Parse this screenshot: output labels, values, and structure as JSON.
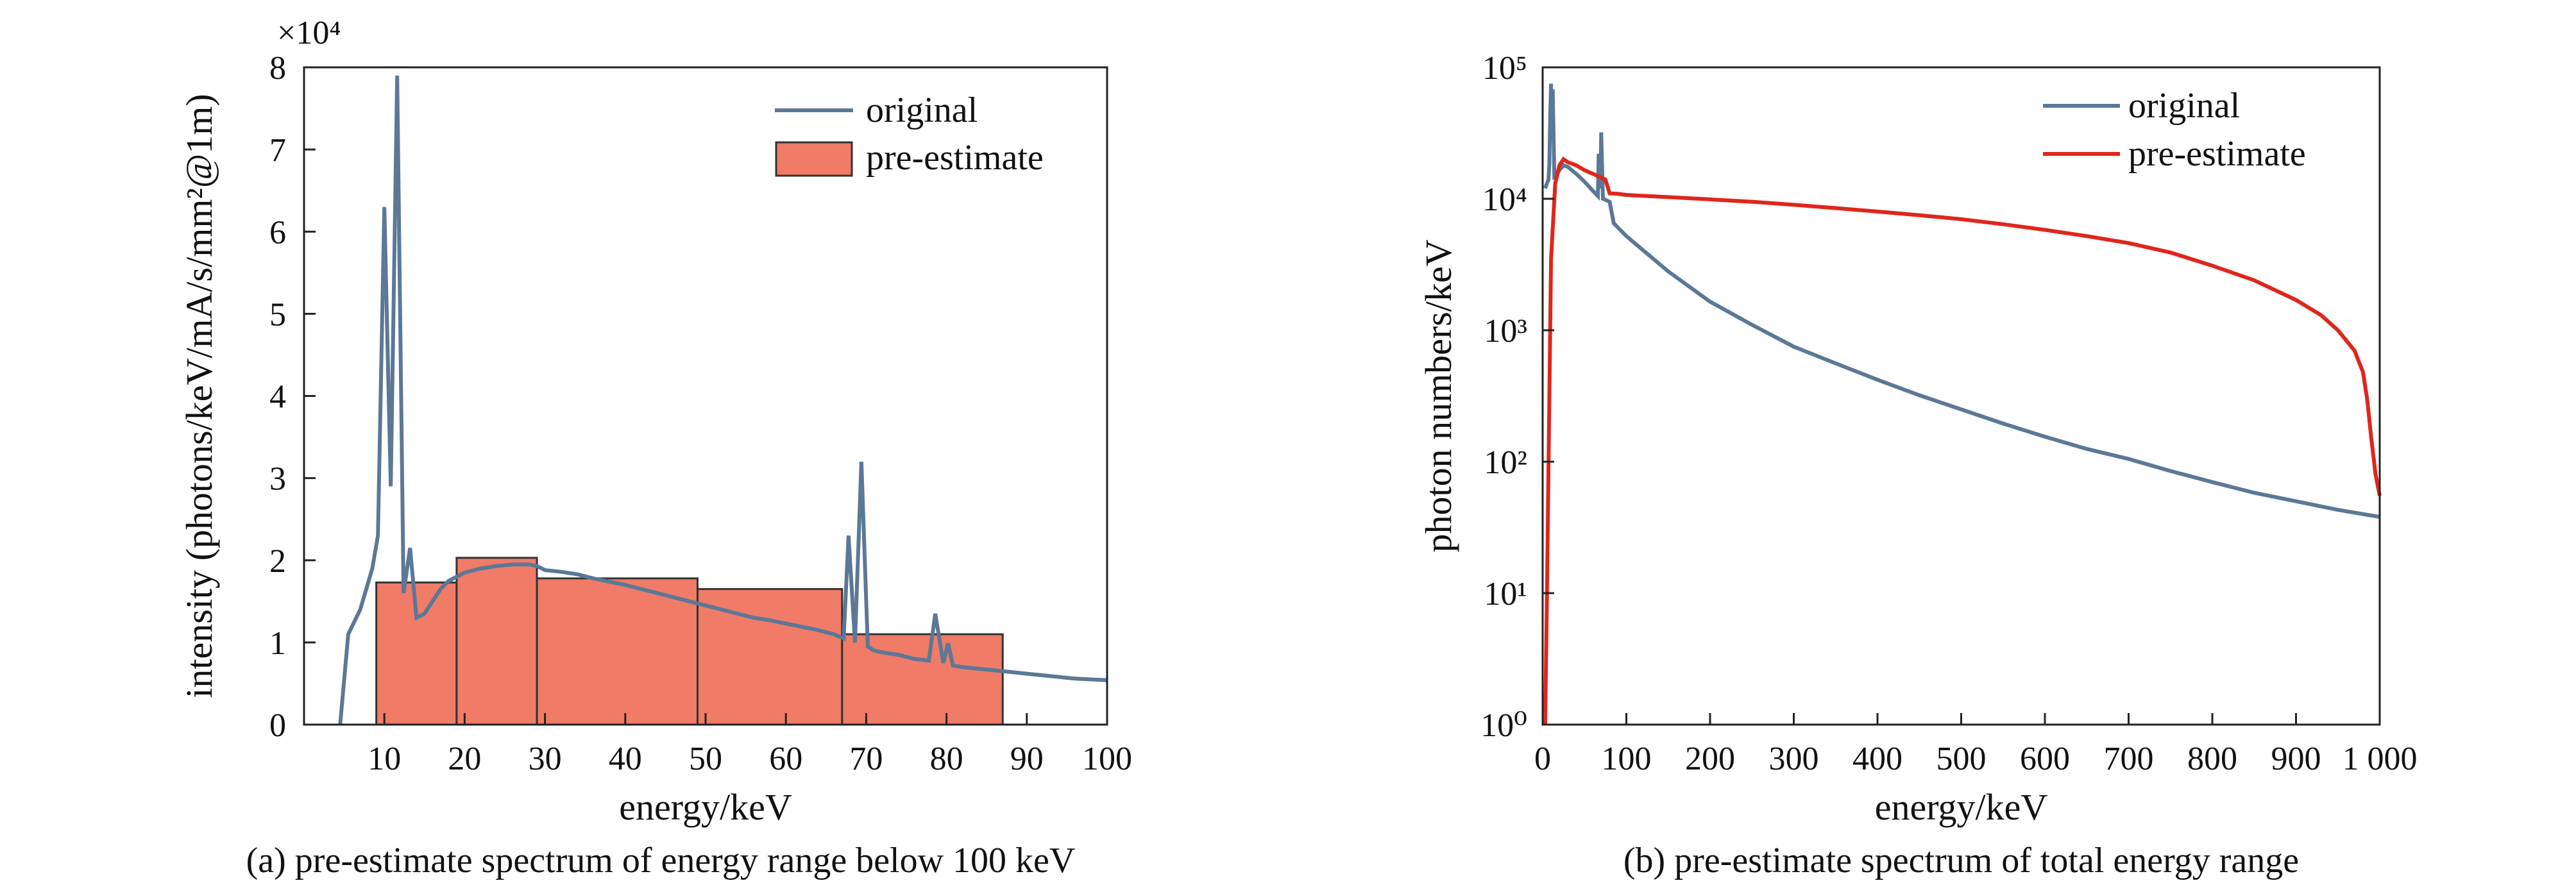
{
  "chart_data": [
    {
      "type": "bar",
      "caption": "(a) pre-estimate spectrum of energy range below 100 keV",
      "xlabel": "energy/keV",
      "ylabel": "intensity (photons/keV/mA/s/mm²@1m)",
      "exponent_label": "×10⁴",
      "xlim": [
        0,
        100
      ],
      "ylim": [
        0,
        8
      ],
      "xticks": [
        "10",
        "20",
        "30",
        "40",
        "50",
        "60",
        "70",
        "80",
        "90",
        "100"
      ],
      "yticks": [
        "0",
        "1",
        "2",
        "3",
        "4",
        "5",
        "6",
        "7",
        "8"
      ],
      "legend": [
        "original",
        "pre-estimate"
      ],
      "legend_position": "top-right",
      "bars": [
        {
          "x0": 9,
          "x1": 19,
          "value": 1.73
        },
        {
          "x0": 19,
          "x1": 29,
          "value": 2.03
        },
        {
          "x0": 29,
          "x1": 49,
          "value": 1.78
        },
        {
          "x0": 49,
          "x1": 67,
          "value": 1.65
        },
        {
          "x0": 67,
          "x1": 87,
          "value": 1.1
        }
      ],
      "series": [
        {
          "name": "original",
          "x": [
            4.5,
            5.5,
            7,
            8.5,
            9.2,
            10,
            10.8,
            11.6,
            12.4,
            13.2,
            14,
            15,
            16,
            17,
            18,
            19,
            20,
            22,
            24,
            26,
            28,
            29,
            30,
            32,
            34,
            36,
            38,
            40,
            42,
            44,
            46,
            48,
            50,
            52,
            54,
            56,
            58,
            60,
            62,
            64,
            66,
            67.2,
            67.8,
            68.6,
            69.4,
            70.2,
            71,
            72,
            74,
            76,
            77.8,
            78.6,
            79.6,
            80.2,
            80.8,
            82,
            84,
            86,
            88,
            90,
            92,
            94,
            96,
            98,
            100
          ],
          "values": [
            0.0,
            1.1,
            1.4,
            1.9,
            2.3,
            6.3,
            2.9,
            7.9,
            1.6,
            2.15,
            1.3,
            1.35,
            1.5,
            1.65,
            1.75,
            1.8,
            1.85,
            1.9,
            1.93,
            1.95,
            1.95,
            1.93,
            1.88,
            1.86,
            1.83,
            1.78,
            1.74,
            1.7,
            1.65,
            1.6,
            1.55,
            1.5,
            1.45,
            1.4,
            1.35,
            1.3,
            1.27,
            1.23,
            1.19,
            1.15,
            1.1,
            1.05,
            2.3,
            1.0,
            3.2,
            0.95,
            0.9,
            0.88,
            0.85,
            0.8,
            0.78,
            1.35,
            0.75,
            0.99,
            0.72,
            0.7,
            0.68,
            0.66,
            0.64,
            0.62,
            0.6,
            0.58,
            0.56,
            0.55,
            0.54
          ]
        }
      ]
    },
    {
      "type": "line",
      "caption": "(b) pre-estimate spectrum of total energy range",
      "xlabel": "energy/keV",
      "ylabel": "photon numbers/keV",
      "xlim": [
        0,
        1000
      ],
      "ylim": [
        1,
        100000
      ],
      "yscale": "log",
      "xticks": [
        "0",
        "100",
        "200",
        "300",
        "400",
        "500",
        "600",
        "700",
        "800",
        "900",
        "1 000"
      ],
      "yticks": [
        "10⁰",
        "10¹",
        "10²",
        "10³",
        "10⁴",
        "10⁵"
      ],
      "legend": [
        "original",
        "pre-estimate"
      ],
      "legend_position": "top-right",
      "series": [
        {
          "name": "original",
          "x": [
            3,
            5,
            7,
            8,
            9,
            10,
            11,
            12,
            14,
            16,
            20,
            25,
            30,
            40,
            50,
            60,
            66,
            67,
            69,
            70,
            72,
            80,
            85,
            100,
            150,
            200,
            250,
            300,
            350,
            400,
            450,
            500,
            550,
            600,
            650,
            700,
            750,
            800,
            850,
            900,
            950,
            1000
          ],
          "values": [
            12000,
            13000,
            14000,
            18000,
            40000,
            75000,
            28000,
            68000,
            14000,
            15000,
            16500,
            18000,
            17500,
            15500,
            13500,
            11500,
            10500,
            22000,
            12000,
            32000,
            10000,
            9500,
            6500,
            5200,
            2800,
            1650,
            1100,
            750,
            560,
            420,
            320,
            250,
            195,
            155,
            125,
            105,
            85,
            70,
            58,
            50,
            43,
            38
          ]
        },
        {
          "name": "pre-estimate",
          "x": [
            3,
            5,
            10,
            15,
            20,
            25,
            30,
            40,
            50,
            60,
            70,
            75,
            80,
            90,
            100,
            150,
            200,
            250,
            300,
            350,
            400,
            450,
            500,
            550,
            600,
            650,
            700,
            750,
            800,
            850,
            900,
            930,
            950,
            970,
            980,
            985,
            990,
            995,
            1000
          ],
          "values": [
            1,
            8,
            3500,
            13000,
            18000,
            20000,
            19000,
            18000,
            16500,
            15500,
            14500,
            14000,
            11000,
            10900,
            10700,
            10300,
            9900,
            9500,
            9000,
            8500,
            8000,
            7500,
            7000,
            6400,
            5800,
            5200,
            4600,
            3900,
            3100,
            2400,
            1700,
            1300,
            1000,
            700,
            480,
            300,
            150,
            80,
            55
          ]
        }
      ]
    }
  ]
}
